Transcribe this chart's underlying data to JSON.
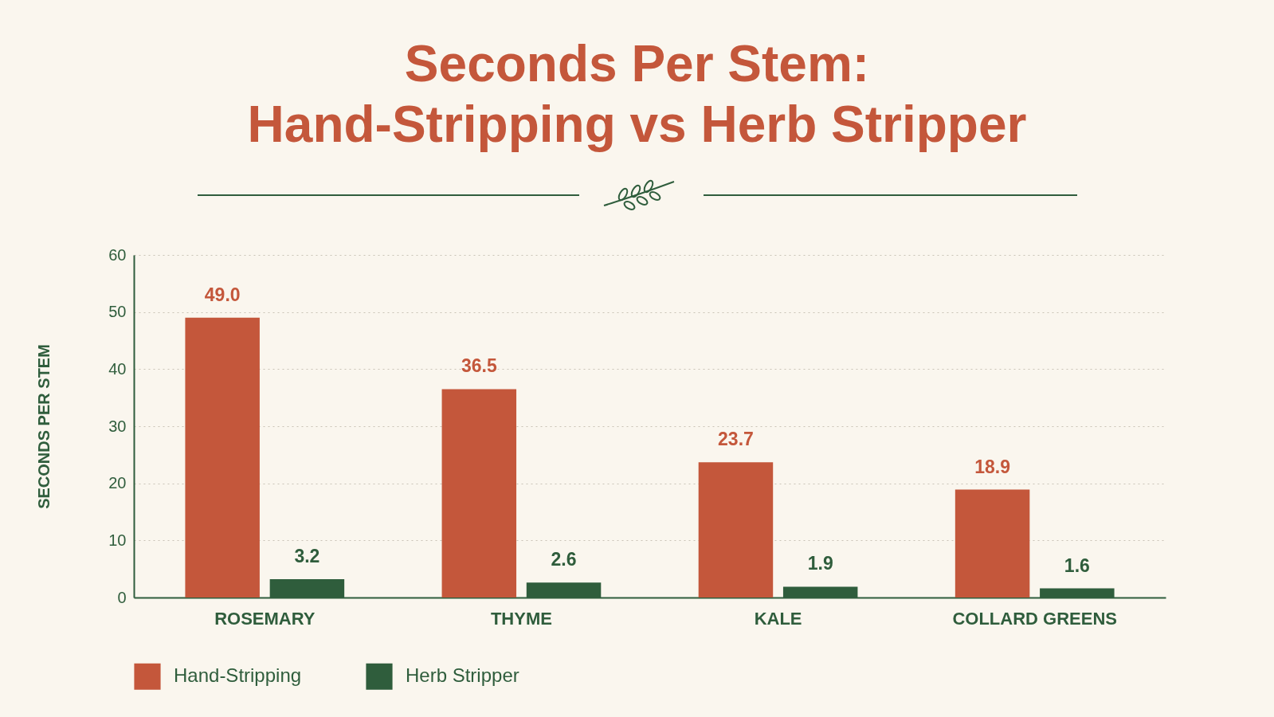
{
  "chart_data": {
    "type": "bar",
    "title": "Seconds Per Stem: Hand-Stripping vs Herb Stripper",
    "ylabel": "SECONDS PER STEM",
    "categories": [
      "ROSEMARY",
      "THYME",
      "KALE",
      "COLLARD GREENS"
    ],
    "series": [
      {
        "name": "Hand-Stripping",
        "color": "#c4573b",
        "values": [
          49.0,
          36.5,
          23.7,
          18.9
        ],
        "value_labels": [
          "49.0",
          "36.5",
          "23.7",
          "18.9"
        ]
      },
      {
        "name": "Herb Stripper",
        "color": "#2f5d3c",
        "values": [
          3.2,
          2.6,
          1.9,
          1.6
        ],
        "value_labels": [
          "3.2",
          "2.6",
          "1.9",
          "1.6"
        ]
      }
    ],
    "ylim": [
      0,
      60
    ],
    "yticks": [
      0,
      10,
      20,
      30,
      40,
      50,
      60
    ],
    "grid": "y",
    "legend": "bottom"
  }
}
